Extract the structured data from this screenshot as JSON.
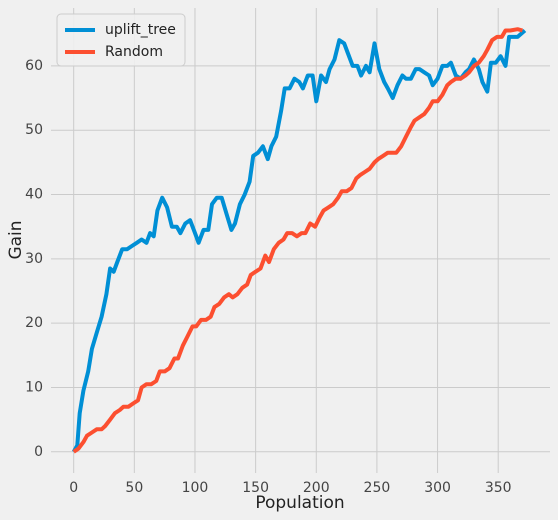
{
  "chart_data": {
    "type": "line",
    "xlabel": "Population",
    "ylabel": "Gain",
    "xlim": [
      -18.7,
      392.7
    ],
    "xticks": [
      0,
      50,
      100,
      150,
      200,
      250,
      300,
      350
    ],
    "ylim": [
      -3.3,
      69
    ],
    "yticks": [
      0,
      10,
      20,
      30,
      40,
      50,
      60
    ],
    "grid": true,
    "legend": "upper left",
    "series": [
      {
        "name": "uplift_tree",
        "color": "#008fd5",
        "x": [
          0,
          3,
          5,
          8,
          12,
          15,
          19,
          23,
          27,
          30,
          33,
          36,
          40,
          44,
          48,
          52,
          56,
          60,
          63,
          66,
          69,
          73,
          77,
          81,
          85,
          88,
          92,
          96,
          100,
          103,
          107,
          111,
          114,
          118,
          122,
          126,
          130,
          133,
          137,
          141,
          145,
          148,
          152,
          156,
          160,
          163,
          167,
          171,
          174,
          178,
          182,
          186,
          189,
          193,
          197,
          200,
          204,
          208,
          211,
          215,
          219,
          223,
          226,
          230,
          234,
          237,
          241,
          244,
          248,
          252,
          256,
          259,
          263,
          267,
          271,
          274,
          278,
          282,
          285,
          289,
          293,
          296,
          300,
          304,
          308,
          311,
          315,
          319,
          323,
          326,
          330,
          334,
          337,
          341,
          344,
          348,
          352,
          356,
          359,
          366,
          372
        ],
        "values": [
          0,
          1,
          6,
          9.5,
          12.5,
          16,
          18.5,
          21,
          24.5,
          28.5,
          28,
          29.5,
          31.5,
          31.5,
          32,
          32.5,
          33,
          32.5,
          34,
          33.5,
          37.5,
          39.5,
          38,
          35,
          35,
          34,
          35.5,
          36,
          34,
          32.5,
          34.5,
          34.5,
          38.5,
          39.5,
          39.5,
          37,
          34.5,
          35.5,
          38.5,
          40,
          42,
          46,
          46.5,
          47.5,
          45.5,
          47.5,
          49,
          53,
          56.5,
          56.5,
          58,
          57.5,
          56.5,
          58.5,
          58.5,
          54.5,
          58.5,
          57.5,
          59.5,
          61,
          64,
          63.5,
          62,
          60,
          60,
          58.5,
          60,
          59,
          63.5,
          59.5,
          57.5,
          56.5,
          55,
          57,
          58.5,
          58,
          58,
          59.5,
          59.5,
          59,
          58.5,
          57,
          58,
          60,
          60,
          60.5,
          58.5,
          58,
          59,
          59.5,
          61,
          59.5,
          57.5,
          56,
          60.5,
          60.5,
          61.5,
          60,
          64.5,
          64.5,
          65.5
        ]
      },
      {
        "name": "Random",
        "color": "#fc4f30",
        "x": [
          0,
          4,
          8,
          11,
          15,
          19,
          23,
          26,
          30,
          34,
          38,
          41,
          45,
          49,
          53,
          56,
          60,
          64,
          68,
          71,
          75,
          79,
          83,
          86,
          90,
          94,
          98,
          101,
          105,
          109,
          113,
          116,
          120,
          124,
          128,
          131,
          135,
          139,
          143,
          146,
          150,
          154,
          158,
          161,
          165,
          169,
          173,
          176,
          180,
          184,
          188,
          191,
          195,
          199,
          203,
          206,
          210,
          214,
          218,
          221,
          225,
          229,
          233,
          236,
          240,
          244,
          248,
          251,
          255,
          259,
          263,
          266,
          270,
          274,
          278,
          281,
          285,
          289,
          293,
          296,
          300,
          304,
          308,
          311,
          315,
          319,
          323,
          326,
          330,
          334,
          338,
          341,
          345,
          349,
          353,
          356,
          360,
          366,
          370
        ],
        "values": [
          0,
          0.5,
          1.5,
          2.5,
          3,
          3.5,
          3.5,
          4,
          5,
          6,
          6.5,
          7,
          7,
          7.5,
          8,
          10,
          10.5,
          10.5,
          11,
          12.5,
          12.5,
          13,
          14.5,
          14.5,
          16.5,
          18,
          19.5,
          19.5,
          20.5,
          20.5,
          21,
          22.5,
          23,
          24,
          24.5,
          24,
          24.5,
          25.5,
          26,
          27.5,
          28,
          28.5,
          30.5,
          29.5,
          31.5,
          32.5,
          33,
          34,
          34,
          33.5,
          34,
          34,
          35.5,
          35,
          36.5,
          37.5,
          38,
          38.5,
          39.5,
          40.5,
          40.5,
          41,
          42.5,
          43,
          43.5,
          44,
          45,
          45.5,
          46,
          46.5,
          46.5,
          46.5,
          47.5,
          49,
          50.5,
          51.5,
          52,
          52.5,
          53.5,
          54.5,
          54.5,
          55.5,
          57,
          57.5,
          58,
          58,
          58.5,
          59,
          60,
          60.5,
          61.5,
          62.5,
          64,
          64.5,
          64.5,
          65.5,
          65.5,
          65.7,
          65.5
        ]
      }
    ]
  }
}
